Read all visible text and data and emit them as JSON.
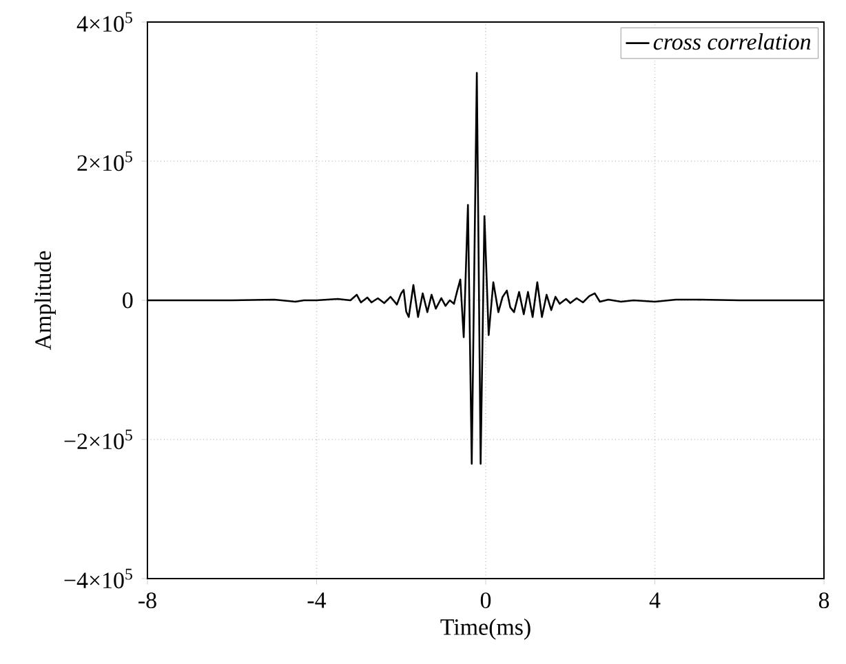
{
  "chart_data": {
    "type": "line",
    "xlabel": "Time(ms)",
    "ylabel": "Amplitude",
    "xlim": [
      -8,
      8
    ],
    "ylim": [
      -400000,
      400000
    ],
    "xticks": [
      {
        "value": -8,
        "label": "-8"
      },
      {
        "value": -4,
        "label": "-4"
      },
      0,
      4,
      8
    ],
    "yticks": [
      {
        "value": -400000,
        "label": "−4×10$^{5}$"
      },
      {
        "value": -200000,
        "label": "−2×10$^{5}$"
      },
      0,
      {
        "value": 200000,
        "label": "2×10$^{5}$"
      },
      {
        "value": 400000,
        "label": "4×10$^{5}$"
      }
    ],
    "grid": true,
    "legend": "top right",
    "marker": "none",
    "line_style": "solid",
    "series": [
      {
        "name": "cross correlation",
        "color": "#000000",
        "x": [
          -8,
          -6,
          -5,
          -4.5,
          -4.3,
          -4,
          -3.5,
          -3.2,
          -3.05,
          -2.95,
          -2.8,
          -2.7,
          -2.55,
          -2.4,
          -2.25,
          -2.1,
          -2.0,
          -1.94,
          -1.88,
          -1.82,
          -1.71,
          -1.6,
          -1.49,
          -1.38,
          -1.28,
          -1.18,
          -1.05,
          -0.95,
          -0.85,
          -0.75,
          -0.68,
          -0.6,
          -0.52,
          -0.42,
          -0.33,
          -0.21,
          -0.12,
          -0.03,
          0.07,
          0.18,
          0.3,
          0.4,
          0.5,
          0.58,
          0.67,
          0.79,
          0.9,
          1.0,
          1.11,
          1.22,
          1.33,
          1.44,
          1.55,
          1.65,
          1.75,
          1.9,
          2.0,
          2.15,
          2.3,
          2.45,
          2.58,
          2.7,
          2.9,
          3.2,
          3.5,
          4.0,
          4.5,
          5,
          6,
          8
        ],
        "values": [
          0,
          0,
          1000,
          -2000,
          0,
          0,
          2000,
          0,
          8000,
          -3000,
          4000,
          -3000,
          3000,
          -4000,
          5000,
          -6000,
          10000,
          15000,
          -16000,
          -24000,
          22000,
          -24000,
          10000,
          -17000,
          8000,
          -12000,
          3000,
          -8000,
          0,
          -5000,
          12000,
          30000,
          -53000,
          137000,
          -235000,
          327000,
          -235000,
          121000,
          -50000,
          26000,
          -17000,
          5000,
          14000,
          -10000,
          -17000,
          12000,
          -20000,
          12000,
          -24000,
          26000,
          -24000,
          8000,
          -14000,
          5000,
          -5000,
          2000,
          -4000,
          3000,
          -3000,
          6000,
          10000,
          -2000,
          1000,
          -2000,
          0,
          -2000,
          1000,
          1000,
          0,
          0
        ]
      }
    ]
  }
}
